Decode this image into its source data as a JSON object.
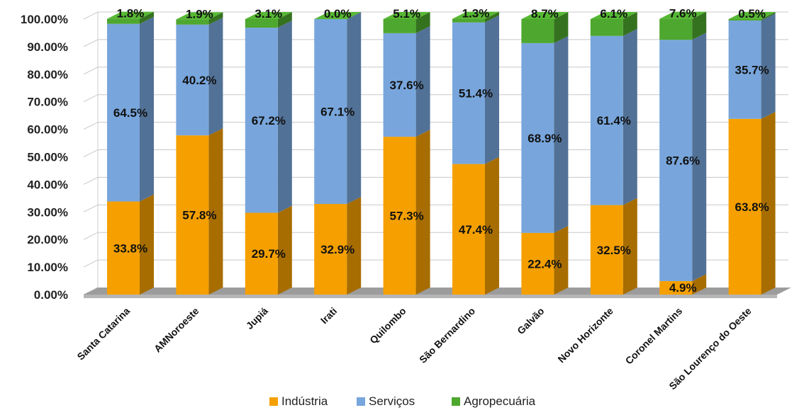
{
  "chart_data": {
    "type": "bar",
    "stacked": true,
    "three_d": true,
    "categories": [
      "Santa Catarina",
      "AMNoroeste",
      "Jupiá",
      "Irati",
      "Quilombo",
      "São Bernardino",
      "Galvão",
      "Novo Horizonte",
      "Coronel Martins",
      "São Lourenço do Oeste"
    ],
    "series": [
      {
        "name": "Indústria",
        "color": "#f5a000",
        "values": [
          33.8,
          57.8,
          29.7,
          32.9,
          57.3,
          47.4,
          22.4,
          32.5,
          4.9,
          63.8
        ],
        "labels": [
          "33.8%",
          "57.8%",
          "29.7%",
          "32.9%",
          "57.3%",
          "47.4%",
          "22.4%",
          "32.5%",
          "4.9%",
          "63.8%"
        ]
      },
      {
        "name": "Serviços",
        "color": "#78a6dc",
        "values": [
          64.5,
          40.2,
          67.2,
          67.1,
          37.6,
          51.4,
          68.9,
          61.4,
          87.6,
          35.7
        ],
        "labels": [
          "64.5%",
          "40.2%",
          "67.2%",
          "67.1%",
          "37.6%",
          "51.4%",
          "68.9%",
          "61.4%",
          "87.6%",
          "35.7%"
        ]
      },
      {
        "name": "Agropecuária",
        "color": "#4ea72e",
        "values": [
          1.8,
          1.9,
          3.1,
          0.0,
          5.1,
          1.3,
          8.7,
          6.1,
          7.6,
          0.5
        ],
        "labels": [
          "1.8%",
          "1.9%",
          "3.1%",
          "0.0%",
          "5.1%",
          "1.3%",
          "8.7%",
          "6.1%",
          "7.6%",
          "0.5%"
        ]
      }
    ],
    "y_ticks": [
      "0.00%",
      "10.00%",
      "20.00%",
      "30.00%",
      "40.00%",
      "50.00%",
      "60.00%",
      "70.00%",
      "80.00%",
      "90.00%",
      "100.00%"
    ],
    "ylim": [
      0,
      100
    ],
    "grid": true,
    "legend_position": "bottom"
  }
}
